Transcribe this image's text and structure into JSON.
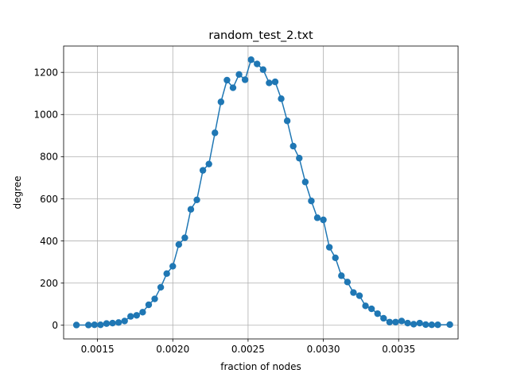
{
  "chart_data": {
    "type": "line",
    "title": "random_test_2.txt",
    "xlabel": "fraction of nodes",
    "ylabel": "degree",
    "xlim": [
      0.001275,
      0.003895
    ],
    "ylim": [
      -65,
      1325
    ],
    "x_ticks": [
      {
        "value": 0.0015,
        "label": "0.0015"
      },
      {
        "value": 0.002,
        "label": "0.0020"
      },
      {
        "value": 0.0025,
        "label": "0.0025"
      },
      {
        "value": 0.003,
        "label": "0.0030"
      },
      {
        "value": 0.0035,
        "label": "0.0035"
      }
    ],
    "y_ticks": [
      {
        "value": 0,
        "label": "0"
      },
      {
        "value": 200,
        "label": "200"
      },
      {
        "value": 400,
        "label": "400"
      },
      {
        "value": 600,
        "label": "600"
      },
      {
        "value": 800,
        "label": "800"
      },
      {
        "value": 1000,
        "label": "1000"
      },
      {
        "value": 1200,
        "label": "1200"
      }
    ],
    "grid": true,
    "color": "#1f77b4",
    "marker": "circle",
    "x": [
      0.00136,
      0.00144,
      0.00148,
      0.00152,
      0.00156,
      0.0016,
      0.00164,
      0.00168,
      0.00172,
      0.00176,
      0.0018,
      0.00184,
      0.00188,
      0.00192,
      0.00196,
      0.002,
      0.00204,
      0.00208,
      0.00212,
      0.00216,
      0.0022,
      0.00224,
      0.00228,
      0.00232,
      0.00236,
      0.0024,
      0.00244,
      0.00248,
      0.00252,
      0.00256,
      0.0026,
      0.00264,
      0.00268,
      0.00272,
      0.00276,
      0.0028,
      0.00284,
      0.00288,
      0.00292,
      0.00296,
      0.003,
      0.00304,
      0.00308,
      0.00312,
      0.00316,
      0.0032,
      0.00324,
      0.00328,
      0.00332,
      0.00336,
      0.0034,
      0.00344,
      0.00348,
      0.00352,
      0.00356,
      0.0036,
      0.00364,
      0.00368,
      0.00372,
      0.00376,
      0.00384
    ],
    "y": [
      1,
      1,
      2,
      2,
      8,
      10,
      13,
      20,
      42,
      47,
      62,
      97,
      125,
      180,
      245,
      280,
      383,
      415,
      550,
      595,
      735,
      765,
      913,
      1060,
      1163,
      1127,
      1190,
      1165,
      1260,
      1240,
      1213,
      1150,
      1155,
      1075,
      970,
      850,
      793,
      680,
      590,
      510,
      500,
      370,
      320,
      235,
      205,
      155,
      140,
      92,
      78,
      55,
      33,
      15,
      15,
      20,
      10,
      5,
      10,
      3,
      2,
      2,
      3
    ]
  }
}
